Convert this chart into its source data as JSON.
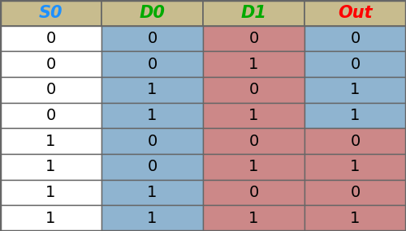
{
  "headers": [
    "S0",
    "D0",
    "D1",
    "Out"
  ],
  "header_colors": [
    "#1E90FF",
    "#00AA00",
    "#00AA00",
    "#FF0000"
  ],
  "header_bg": "#C8BC8E",
  "rows": [
    [
      0,
      0,
      0,
      0
    ],
    [
      0,
      0,
      1,
      0
    ],
    [
      0,
      1,
      0,
      1
    ],
    [
      0,
      1,
      1,
      1
    ],
    [
      1,
      0,
      0,
      0
    ],
    [
      1,
      0,
      1,
      1
    ],
    [
      1,
      1,
      0,
      0
    ],
    [
      1,
      1,
      1,
      1
    ]
  ],
  "col_bg_s0": "#FFFFFF",
  "col_bg_d0": "#8FB4D0",
  "col_bg_d1": "#CC8888",
  "col_bg_out_blue": "#8FB4D0",
  "col_bg_out_red": "#CC8888",
  "text_color": "#000000",
  "border_color": "#666666",
  "fig_width": 5.0,
  "fig_height": 2.85
}
